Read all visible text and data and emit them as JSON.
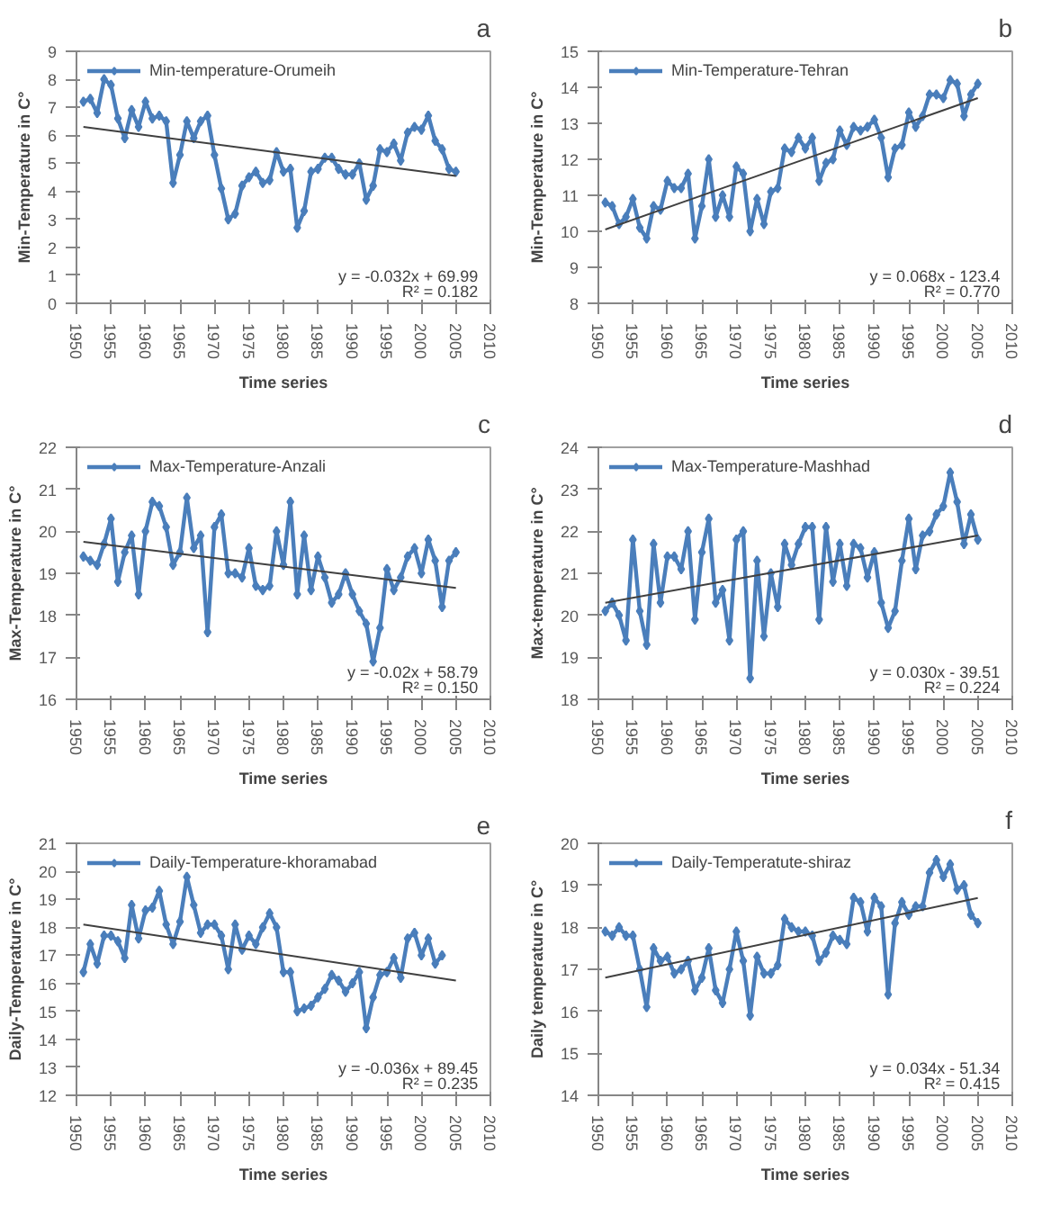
{
  "chart_data": [
    {
      "type": "line",
      "title": "a",
      "xlabel": "Time series",
      "ylabel": "Min-Temperature in C°",
      "xlim": [
        1950,
        2010
      ],
      "xticks": [
        1950,
        1955,
        1960,
        1965,
        1970,
        1975,
        1980,
        1985,
        1990,
        1995,
        2000,
        2005,
        2010
      ],
      "ylim": [
        0,
        9
      ],
      "yticks": [
        0,
        1,
        2,
        3,
        4,
        5,
        6,
        7,
        8,
        9
      ],
      "grid": false,
      "legend": "top left",
      "marker": "diamond",
      "line_style": "solid",
      "annotations": [
        "y = -0.032x + 69.99",
        "R² = 0.182"
      ],
      "series": [
        {
          "name": "Min-temperature-Orumeih",
          "color": "#4a7ebb",
          "x": [
            1951,
            1952,
            1953,
            1954,
            1955,
            1956,
            1957,
            1958,
            1959,
            1960,
            1961,
            1962,
            1963,
            1964,
            1965,
            1966,
            1967,
            1968,
            1969,
            1970,
            1971,
            1972,
            1973,
            1974,
            1975,
            1976,
            1977,
            1978,
            1979,
            1980,
            1981,
            1982,
            1983,
            1984,
            1985,
            1986,
            1987,
            1988,
            1989,
            1990,
            1991,
            1992,
            1993,
            1994,
            1995,
            1996,
            1997,
            1998,
            1999,
            2000,
            2001,
            2002,
            2003,
            2004,
            2005
          ],
          "values": [
            7.2,
            7.3,
            6.8,
            8.0,
            7.8,
            6.6,
            5.9,
            6.9,
            6.3,
            7.2,
            6.6,
            6.7,
            6.5,
            4.3,
            5.3,
            6.5,
            5.9,
            6.5,
            6.7,
            5.3,
            4.1,
            3.0,
            3.2,
            4.2,
            4.5,
            4.7,
            4.3,
            4.4,
            5.4,
            4.7,
            4.8,
            2.7,
            3.3,
            4.7,
            4.8,
            5.2,
            5.2,
            4.8,
            4.6,
            4.6,
            5.0,
            3.7,
            4.2,
            5.5,
            5.4,
            5.7,
            5.1,
            6.1,
            6.3,
            6.2,
            6.7,
            5.8,
            5.5,
            4.8,
            4.7
          ]
        },
        {
          "type": "line",
          "color": "#404040",
          "marker": "none",
          "x": [
            1951,
            2005
          ],
          "values": [
            6.3,
            4.55
          ]
        }
      ]
    },
    {
      "type": "line",
      "title": "b",
      "xlabel": "Time series",
      "ylabel": "Min-Temperature in C°",
      "xlim": [
        1950,
        2010
      ],
      "xticks": [
        1950,
        1955,
        1960,
        1965,
        1970,
        1975,
        1980,
        1985,
        1990,
        1995,
        2000,
        2005,
        2010
      ],
      "ylim": [
        8,
        15
      ],
      "yticks": [
        8,
        9,
        10,
        11,
        12,
        13,
        14,
        15
      ],
      "grid": false,
      "legend": "top left",
      "marker": "diamond",
      "line_style": "solid",
      "annotations": [
        "y = 0.068x - 123.4",
        "R² = 0.770"
      ],
      "series": [
        {
          "name": "Min-Temperature-Tehran",
          "color": "#4a7ebb",
          "x": [
            1951,
            1952,
            1953,
            1954,
            1955,
            1956,
            1957,
            1958,
            1959,
            1960,
            1961,
            1962,
            1963,
            1964,
            1965,
            1966,
            1967,
            1968,
            1969,
            1970,
            1971,
            1972,
            1973,
            1974,
            1975,
            1976,
            1977,
            1978,
            1979,
            1980,
            1981,
            1982,
            1983,
            1984,
            1985,
            1986,
            1987,
            1988,
            1989,
            1990,
            1991,
            1992,
            1993,
            1994,
            1995,
            1996,
            1997,
            1998,
            1999,
            2000,
            2001,
            2002,
            2003,
            2004,
            2005
          ],
          "values": [
            10.8,
            10.7,
            10.2,
            10.4,
            10.9,
            10.1,
            9.8,
            10.7,
            10.6,
            11.4,
            11.2,
            11.2,
            11.6,
            9.8,
            10.7,
            12.0,
            10.4,
            11.0,
            10.4,
            11.8,
            11.6,
            10.0,
            10.9,
            10.2,
            11.1,
            11.2,
            12.3,
            12.2,
            12.6,
            12.3,
            12.6,
            11.4,
            11.9,
            12.0,
            12.8,
            12.4,
            12.9,
            12.8,
            12.9,
            13.1,
            12.6,
            11.5,
            12.3,
            12.4,
            13.3,
            12.9,
            13.2,
            13.8,
            13.8,
            13.7,
            14.2,
            14.1,
            13.2,
            13.8,
            14.1
          ]
        },
        {
          "type": "line",
          "color": "#404040",
          "marker": "none",
          "x": [
            1951,
            2005
          ],
          "values": [
            10.05,
            13.7
          ]
        }
      ]
    },
    {
      "type": "line",
      "title": "c",
      "xlabel": "Time series",
      "ylabel": "Max-Temperature in C°",
      "xlim": [
        1950,
        2010
      ],
      "xticks": [
        1950,
        1955,
        1960,
        1965,
        1970,
        1975,
        1980,
        1985,
        1990,
        1995,
        2000,
        2005,
        2010
      ],
      "ylim": [
        16,
        22
      ],
      "yticks": [
        16,
        17,
        18,
        19,
        20,
        21,
        22
      ],
      "grid": false,
      "legend": "top left",
      "marker": "diamond",
      "line_style": "solid",
      "annotations": [
        "y = -0.02x + 58.79",
        "R² = 0.150"
      ],
      "series": [
        {
          "name": "Max-Temperature-Anzali",
          "color": "#4a7ebb",
          "x": [
            1951,
            1952,
            1953,
            1954,
            1955,
            1956,
            1957,
            1958,
            1959,
            1960,
            1961,
            1962,
            1963,
            1964,
            1965,
            1966,
            1967,
            1968,
            1969,
            1970,
            1971,
            1972,
            1973,
            1974,
            1975,
            1976,
            1977,
            1978,
            1979,
            1980,
            1981,
            1982,
            1983,
            1984,
            1985,
            1986,
            1987,
            1988,
            1989,
            1990,
            1991,
            1992,
            1993,
            1994,
            1995,
            1996,
            1997,
            1998,
            1999,
            2000,
            2001,
            2002,
            2003,
            2004,
            2005
          ],
          "values": [
            19.4,
            19.3,
            19.2,
            19.7,
            20.3,
            18.8,
            19.5,
            19.9,
            18.5,
            20.0,
            20.7,
            20.6,
            20.1,
            19.2,
            19.5,
            20.8,
            19.6,
            19.9,
            17.6,
            20.1,
            20.4,
            19.0,
            19.0,
            18.9,
            19.6,
            18.7,
            18.6,
            18.7,
            20.0,
            19.2,
            20.7,
            18.5,
            19.9,
            18.6,
            19.4,
            18.9,
            18.3,
            18.5,
            19.0,
            18.5,
            18.1,
            17.8,
            16.9,
            17.7,
            19.1,
            18.6,
            18.9,
            19.4,
            19.6,
            19.0,
            19.8,
            19.3,
            18.2,
            19.3,
            19.5
          ]
        },
        {
          "type": "line",
          "color": "#404040",
          "marker": "none",
          "x": [
            1951,
            2005
          ],
          "values": [
            19.75,
            18.65
          ]
        }
      ]
    },
    {
      "type": "line",
      "title": "d",
      "xlabel": "Time series",
      "ylabel": "Max-temperature in C°",
      "xlim": [
        1950,
        2010
      ],
      "xticks": [
        1950,
        1955,
        1960,
        1965,
        1970,
        1975,
        1980,
        1985,
        1990,
        1995,
        2000,
        2005,
        2010
      ],
      "ylim": [
        18,
        24
      ],
      "yticks": [
        18,
        19,
        20,
        21,
        22,
        23,
        24
      ],
      "grid": false,
      "legend": "top left",
      "marker": "diamond",
      "line_style": "solid",
      "annotations": [
        "y = 0.030x - 39.51",
        "R² = 0.224"
      ],
      "series": [
        {
          "name": "Max-Temperature-Mashhad",
          "color": "#4a7ebb",
          "x": [
            1951,
            1952,
            1953,
            1954,
            1955,
            1956,
            1957,
            1958,
            1959,
            1960,
            1961,
            1962,
            1963,
            1964,
            1965,
            1966,
            1967,
            1968,
            1969,
            1970,
            1971,
            1972,
            1973,
            1974,
            1975,
            1976,
            1977,
            1978,
            1979,
            1980,
            1981,
            1982,
            1983,
            1984,
            1985,
            1986,
            1987,
            1988,
            1989,
            1990,
            1991,
            1992,
            1993,
            1994,
            1995,
            1996,
            1997,
            1998,
            1999,
            2000,
            2001,
            2002,
            2003,
            2004,
            2005
          ],
          "values": [
            20.1,
            20.3,
            20.0,
            19.4,
            21.8,
            20.1,
            19.3,
            21.7,
            20.3,
            21.4,
            21.4,
            21.1,
            22.0,
            19.9,
            21.5,
            22.3,
            20.3,
            20.6,
            19.4,
            21.8,
            22.0,
            18.5,
            21.3,
            19.5,
            21.0,
            20.2,
            21.7,
            21.2,
            21.7,
            22.1,
            22.1,
            19.9,
            22.1,
            20.8,
            21.7,
            20.7,
            21.7,
            21.6,
            20.9,
            21.5,
            20.3,
            19.7,
            20.1,
            21.3,
            22.3,
            21.1,
            21.9,
            22.0,
            22.4,
            22.6,
            23.4,
            22.7,
            21.7,
            22.4,
            21.8
          ]
        },
        {
          "type": "line",
          "color": "#404040",
          "marker": "none",
          "x": [
            1951,
            2005
          ],
          "values": [
            20.3,
            21.9
          ]
        }
      ]
    },
    {
      "type": "line",
      "title": "e",
      "xlabel": "Time series",
      "ylabel": "Daily-Temperature in C°",
      "xlim": [
        1950,
        2010
      ],
      "xticks": [
        1950,
        1955,
        1960,
        1965,
        1970,
        1975,
        1980,
        1985,
        1990,
        1995,
        2000,
        2005,
        2010
      ],
      "ylim": [
        12,
        21
      ],
      "yticks": [
        12,
        13,
        14,
        15,
        16,
        17,
        18,
        19,
        20,
        21
      ],
      "grid": false,
      "legend": "top left",
      "marker": "diamond",
      "line_style": "solid",
      "annotations": [
        "y = -0.036x + 89.45",
        "R² = 0.235"
      ],
      "series": [
        {
          "name": "Daily-Temperature-khoramabad",
          "color": "#4a7ebb",
          "x": [
            1951,
            1952,
            1953,
            1954,
            1955,
            1956,
            1957,
            1958,
            1959,
            1960,
            1961,
            1962,
            1963,
            1964,
            1965,
            1966,
            1967,
            1968,
            1969,
            1970,
            1971,
            1972,
            1973,
            1974,
            1975,
            1976,
            1977,
            1978,
            1979,
            1980,
            1981,
            1982,
            1983,
            1984,
            1985,
            1986,
            1987,
            1988,
            1989,
            1990,
            1991,
            1992,
            1993,
            1994,
            1995,
            1996,
            1997,
            1998,
            1999,
            2000,
            2001,
            2002,
            2003
          ],
          "values": [
            16.4,
            17.4,
            16.7,
            17.7,
            17.7,
            17.5,
            16.9,
            18.8,
            17.6,
            18.6,
            18.7,
            19.3,
            18.1,
            17.4,
            18.2,
            19.8,
            18.8,
            17.8,
            18.1,
            18.1,
            17.7,
            16.5,
            18.1,
            17.2,
            17.7,
            17.4,
            18.0,
            18.5,
            18.0,
            16.4,
            16.4,
            15.0,
            15.1,
            15.2,
            15.5,
            15.8,
            16.3,
            16.1,
            15.7,
            16.0,
            16.4,
            14.4,
            15.5,
            16.3,
            16.4,
            16.9,
            16.2,
            17.6,
            17.8,
            17.0,
            17.6,
            16.7,
            17.0
          ]
        },
        {
          "type": "line",
          "color": "#404040",
          "marker": "none",
          "x": [
            1951,
            2005
          ],
          "values": [
            18.1,
            16.1
          ]
        }
      ]
    },
    {
      "type": "line",
      "title": "f",
      "xlabel": "Time series",
      "ylabel": "Daily temperature in C°",
      "xlim": [
        1950,
        2010
      ],
      "xticks": [
        1950,
        1955,
        1960,
        1965,
        1970,
        1975,
        1980,
        1985,
        1990,
        1995,
        2000,
        2005,
        2010
      ],
      "ylim": [
        14,
        20
      ],
      "yticks": [
        14,
        15,
        16,
        17,
        18,
        19,
        20
      ],
      "grid": false,
      "legend": "top left",
      "marker": "diamond",
      "line_style": "solid",
      "annotations": [
        "y = 0.034x - 51.34",
        "R² = 0.415"
      ],
      "series": [
        {
          "name": "Daily-Temperatute-shiraz",
          "color": "#4a7ebb",
          "x": [
            1951,
            1952,
            1953,
            1954,
            1955,
            1956,
            1957,
            1958,
            1959,
            1960,
            1961,
            1962,
            1963,
            1964,
            1965,
            1966,
            1967,
            1968,
            1969,
            1970,
            1971,
            1972,
            1973,
            1974,
            1975,
            1976,
            1977,
            1978,
            1979,
            1980,
            1981,
            1982,
            1983,
            1984,
            1985,
            1986,
            1987,
            1988,
            1989,
            1990,
            1991,
            1992,
            1993,
            1994,
            1995,
            1996,
            1997,
            1998,
            1999,
            2000,
            2001,
            2002,
            2003,
            2004,
            2005
          ],
          "values": [
            17.9,
            17.8,
            18.0,
            17.8,
            17.8,
            17.0,
            16.1,
            17.5,
            17.2,
            17.3,
            16.9,
            17.0,
            17.2,
            16.5,
            16.8,
            17.5,
            16.5,
            16.2,
            17.0,
            17.9,
            17.2,
            15.9,
            17.3,
            16.9,
            16.9,
            17.1,
            18.2,
            18.0,
            17.9,
            17.9,
            17.8,
            17.2,
            17.4,
            17.8,
            17.7,
            17.6,
            18.7,
            18.6,
            17.9,
            18.7,
            18.5,
            16.4,
            18.1,
            18.6,
            18.3,
            18.5,
            18.5,
            19.3,
            19.6,
            19.2,
            19.5,
            18.9,
            19.0,
            18.3,
            18.1
          ]
        },
        {
          "type": "line",
          "color": "#404040",
          "marker": "none",
          "x": [
            1951,
            2005
          ],
          "values": [
            16.8,
            18.7
          ]
        }
      ]
    }
  ]
}
